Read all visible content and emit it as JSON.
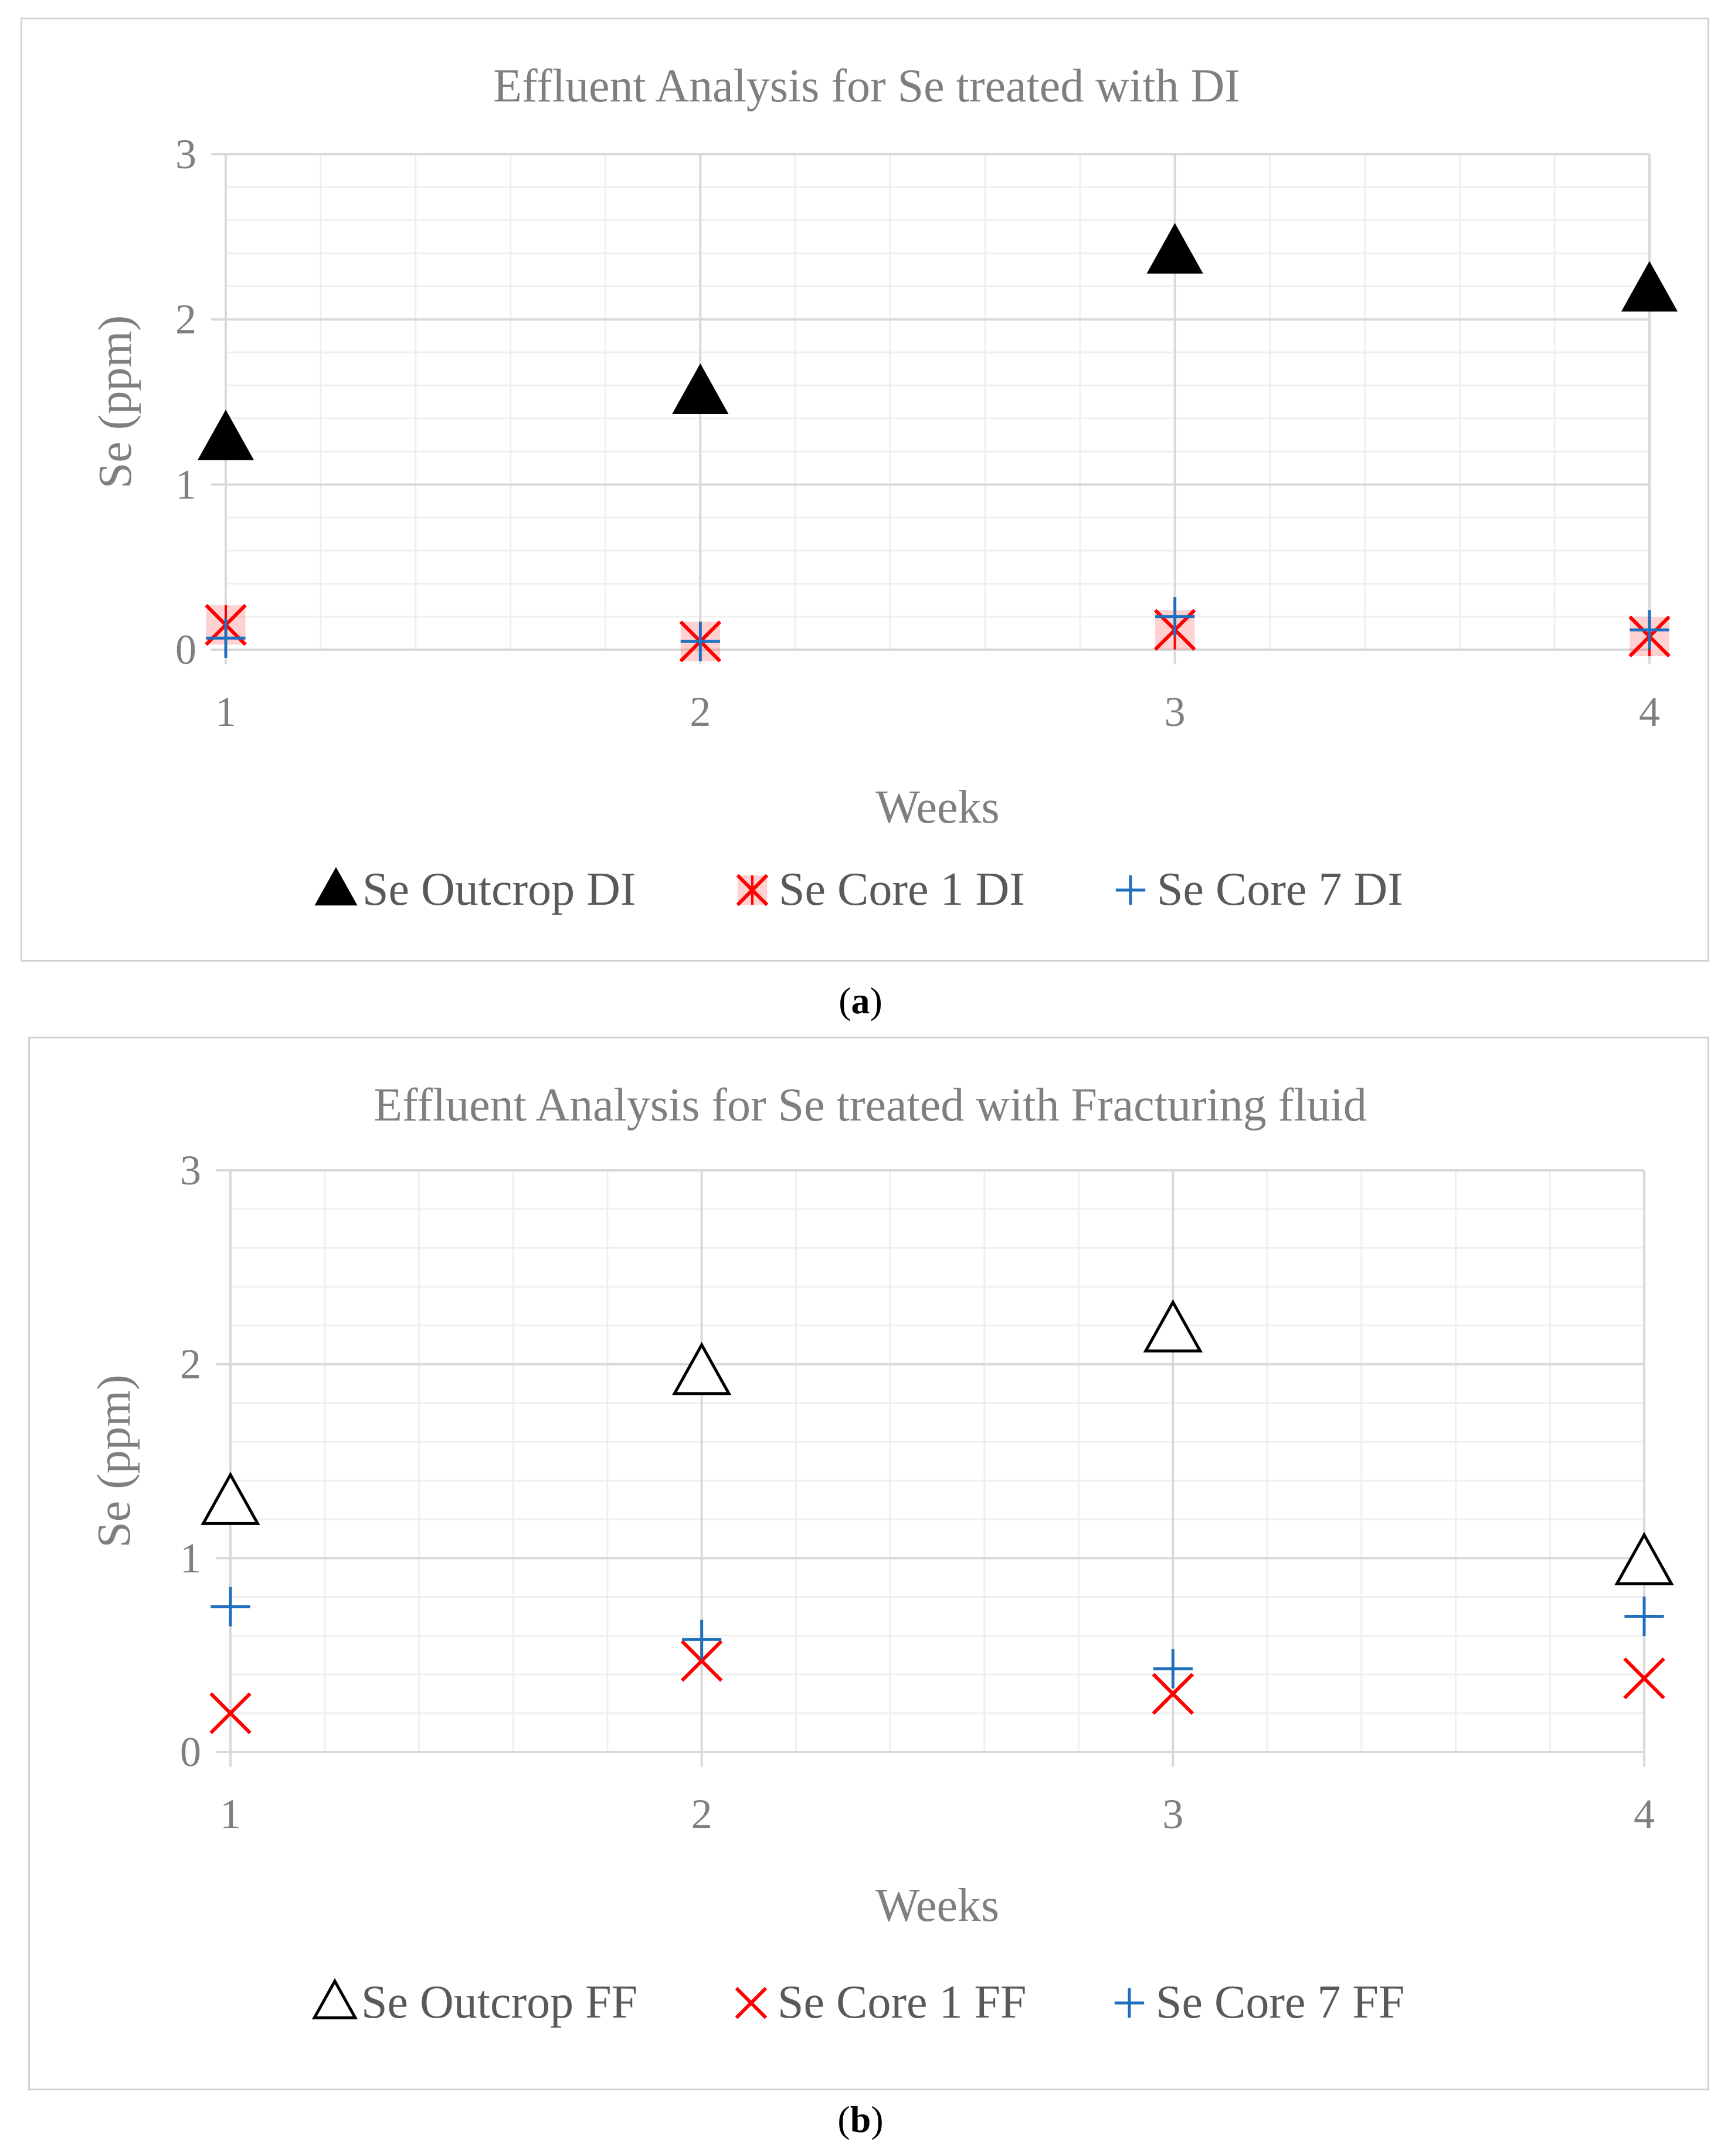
{
  "chart_data": [
    {
      "type": "scatter",
      "panel": "a",
      "title": "Effluent Analysis for Se treated with DI",
      "xlabel": "Weeks",
      "ylabel": "Se (ppm)",
      "x": [
        1,
        2,
        3,
        4
      ],
      "xlim": [
        1,
        4
      ],
      "ylim": [
        0,
        3
      ],
      "yticks": [
        0,
        1,
        2,
        3
      ],
      "xticks": [
        1,
        2,
        3,
        4
      ],
      "grid": true,
      "legend_position": "bottom",
      "series": [
        {
          "name": "Se Outcrop DI",
          "marker": "triangle-filled",
          "color": "#000000",
          "values": [
            1.27,
            1.55,
            2.4,
            2.17
          ]
        },
        {
          "name": "Se Core 1 DI",
          "marker": "x-star",
          "color": "#ff0000",
          "values": [
            0.15,
            0.05,
            0.12,
            0.08
          ]
        },
        {
          "name": "Se Core 7 DI",
          "marker": "plus",
          "color": "#1f6fbf",
          "values": [
            0.07,
            0.05,
            0.2,
            0.12
          ]
        }
      ]
    },
    {
      "type": "scatter",
      "panel": "b",
      "title": "Effluent Analysis for Se treated with Fracturing fluid",
      "xlabel": "Weeks",
      "ylabel": "Se (ppm)",
      "x": [
        1,
        2,
        3,
        4
      ],
      "xlim": [
        1,
        4
      ],
      "ylim": [
        0,
        3
      ],
      "yticks": [
        0,
        1,
        2,
        3
      ],
      "xticks": [
        1,
        2,
        3,
        4
      ],
      "grid": true,
      "legend_position": "bottom",
      "series": [
        {
          "name": "Se Outcrop FF",
          "marker": "triangle-open",
          "color": "#000000",
          "values": [
            1.28,
            1.95,
            2.17,
            0.97
          ]
        },
        {
          "name": "Se Core 1 FF",
          "marker": "x",
          "color": "#ff0000",
          "values": [
            0.2,
            0.47,
            0.3,
            0.38
          ]
        },
        {
          "name": "Se Core 7 FF",
          "marker": "plus",
          "color": "#1f6fbf",
          "values": [
            0.75,
            0.58,
            0.43,
            0.7
          ]
        }
      ]
    }
  ],
  "captions": {
    "a": "(a)",
    "a_letter": "a",
    "b": "(b)",
    "b_letter": "b"
  },
  "colors": {
    "axis_text": "#7f7f7f",
    "grid_major": "#d9d9d9",
    "grid_minor": "#efefef"
  }
}
